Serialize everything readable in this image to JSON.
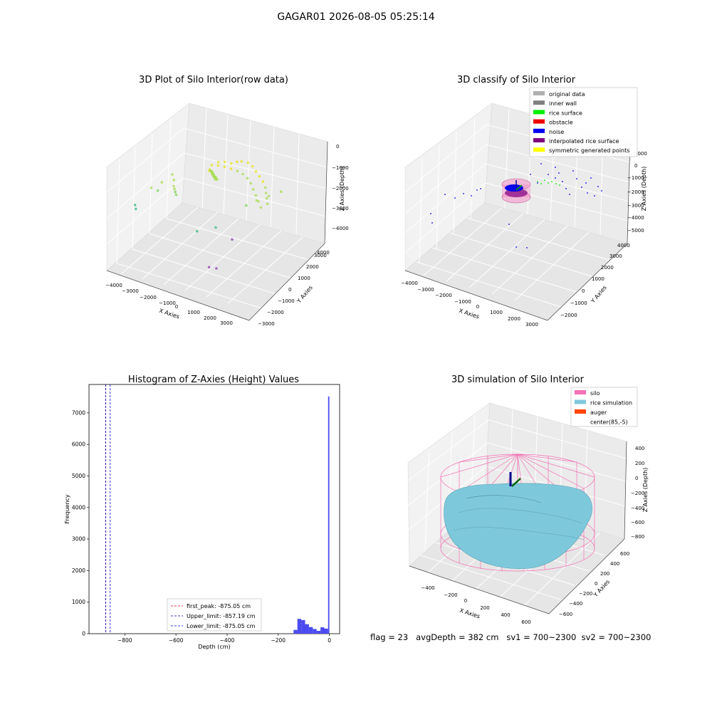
{
  "figure": {
    "title": "GAGAR01 2026-08-05 05:25:14",
    "footer": "flag = 23   avgDepth = 382 cm   sv1 = 700~2300  sv2 = 700~2300"
  },
  "colors": {
    "pane": "#f2f2f2",
    "grid": "#e0e0e0",
    "hist_bar": "#4b4bf0",
    "silo": "#f472b6",
    "rice": "#7ec8dc",
    "auger": "#ff4500"
  },
  "chart_data": [
    {
      "type": "scatter",
      "title": "3D Plot of Silo Interior(row data)",
      "xlabel": "X Axies",
      "ylabel": "Y Axies",
      "zlabel": "Z Axies (Depth)",
      "x_ticks": [
        "−4000",
        "−3000",
        "−2000",
        "−1000",
        "0",
        "1000",
        "2000",
        "3000"
      ],
      "y_ticks": [
        "−3000",
        "−2000",
        "−1000",
        "0",
        "1000",
        "2000",
        "3000",
        "4000"
      ],
      "z_ticks": [
        "0",
        "−1000",
        "−2000",
        "−3000",
        "−4000"
      ],
      "xlim": [
        -4200,
        3600
      ],
      "ylim": [
        -3200,
        4500
      ],
      "zlim": [
        -4300,
        200
      ],
      "series": [
        {
          "color_scale": "depth",
          "points": [
            [
              -1000,
              2000,
              -950
            ],
            [
              -700,
              2100,
              -900
            ],
            [
              -400,
              2200,
              -920
            ],
            [
              -200,
              2400,
              -880
            ],
            [
              0,
              2500,
              -850
            ],
            [
              300,
              2600,
              -870
            ],
            [
              600,
              2500,
              -900
            ],
            [
              900,
              2300,
              -950
            ],
            [
              1200,
              2100,
              -1000
            ],
            [
              1500,
              1900,
              -1050
            ],
            [
              1800,
              1600,
              -1100
            ],
            [
              2000,
              1300,
              -1150
            ],
            [
              2200,
              1000,
              -1200
            ],
            [
              2400,
              700,
              -1250
            ],
            [
              -1200,
              1700,
              -1000
            ],
            [
              -900,
              1800,
              -980
            ],
            [
              -600,
              1900,
              -1000
            ],
            [
              -300,
              2000,
              -1050
            ],
            [
              0,
              2100,
              -1100
            ],
            [
              300,
              2100,
              -1150
            ],
            [
              600,
              2000,
              -1200
            ],
            [
              900,
              1800,
              -1250
            ],
            [
              1200,
              1500,
              -1300
            ],
            [
              1500,
              1200,
              -1350
            ],
            [
              1800,
              900,
              -1400
            ],
            [
              2100,
              600,
              -1450
            ],
            [
              -1100,
              1300,
              -1050
            ],
            [
              -900,
              1200,
              -1100
            ],
            [
              -800,
              1150,
              -1150
            ],
            [
              -700,
              1100,
              -1200
            ],
            [
              -950,
              1300,
              -1080
            ],
            [
              -850,
              1250,
              -1120
            ],
            [
              -750,
              1200,
              -1180
            ],
            [
              -650,
              1150,
              -1240
            ],
            [
              -1000,
              1350,
              -1060
            ],
            [
              -780,
              1180,
              -1160
            ],
            [
              -1150,
              1400,
              -1050
            ],
            [
              -1050,
              1350,
              -1090
            ],
            [
              -900,
              1280,
              -1130
            ],
            [
              -700,
              1200,
              -1170
            ],
            [
              -600,
              1150,
              -1210
            ],
            [
              -800,
              1220,
              -1150
            ],
            [
              -950,
              1320,
              -1100
            ],
            [
              -1100,
              1380,
              -1070
            ],
            [
              -2200,
              -200,
              -1500
            ],
            [
              -2100,
              -300,
              -1550
            ],
            [
              -2000,
              -400,
              -1600
            ],
            [
              -2300,
              -100,
              -1450
            ],
            [
              -2500,
              300,
              -1400
            ],
            [
              -2700,
              500,
              -1300
            ],
            [
              -3800,
              -1200,
              -2200
            ],
            [
              -3700,
              -1300,
              -2300
            ],
            [
              -3200,
              -700,
              -1500
            ],
            [
              -3000,
              -400,
              -1700
            ],
            [
              -2900,
              -200,
              -1400
            ],
            [
              -400,
              -1200,
              -2400
            ],
            [
              300,
              -600,
              -2300
            ],
            [
              1200,
              800,
              -1700
            ],
            [
              1600,
              1100,
              -1500
            ],
            [
              2100,
              1400,
              -1300
            ],
            [
              2600,
              1700,
              -1100
            ]
          ]
        },
        {
          "color": "#8e44ad",
          "points": [
            [
              100,
              -800,
              -4000
            ],
            [
              450,
              -700,
              -4000
            ],
            [
              1000,
              -200,
              -2800
            ]
          ]
        }
      ]
    },
    {
      "type": "scatter",
      "title": "3D classify of Silo Interior",
      "xlabel": "X Axies",
      "ylabel": "Y Axies",
      "zlabel": "Z Axies (Depth)",
      "x_ticks": [
        "−4000",
        "−3000",
        "−2000",
        "−1000",
        "0",
        "1000",
        "2000",
        "3000"
      ],
      "y_ticks": [
        "−2000",
        "−1000",
        "0",
        "1000",
        "2000",
        "3000",
        "4000"
      ],
      "z_ticks": [
        "1000",
        "0",
        "−1000",
        "−2000",
        "−3000",
        "−4000",
        "−5000"
      ],
      "xlim": [
        -4200,
        3600
      ],
      "ylim": [
        -2300,
        4500
      ],
      "zlim": [
        -5400,
        1200
      ],
      "legend": [
        {
          "label": "original data",
          "color": "#b0b0b0"
        },
        {
          "label": "inner wall",
          "color": "#808080"
        },
        {
          "label": "rice surface",
          "color": "#00ee00"
        },
        {
          "label": "obstacle",
          "color": "#ee0000"
        },
        {
          "label": "noise",
          "color": "#0000ee"
        },
        {
          "label": "interpolated rice surface",
          "color": "#800080"
        },
        {
          "label": "symmetric generated points",
          "color": "#ffff00"
        }
      ],
      "legend_position": "top-right"
    },
    {
      "type": "bar",
      "title": "Histogram of Z-Axies (Height) Values",
      "xlabel": "Depth (cm)",
      "ylabel": "Frequency",
      "xlim": [
        -940,
        40
      ],
      "ylim": [
        0,
        7900
      ],
      "x_ticks": [
        -800,
        -600,
        -400,
        -200,
        0
      ],
      "x_tick_labels": [
        "−800",
        "−600",
        "−400",
        "−200",
        "0"
      ],
      "y_ticks": [
        0,
        1000,
        2000,
        3000,
        4000,
        5000,
        6000,
        7000
      ],
      "bins": [
        {
          "x0": -140,
          "x1": -125,
          "count": 120
        },
        {
          "x0": -125,
          "x1": -110,
          "count": 470
        },
        {
          "x0": -110,
          "x1": -95,
          "count": 430
        },
        {
          "x0": -95,
          "x1": -80,
          "count": 300
        },
        {
          "x0": -80,
          "x1": -65,
          "count": 210
        },
        {
          "x0": -65,
          "x1": -50,
          "count": 150
        },
        {
          "x0": -50,
          "x1": -35,
          "count": 90
        },
        {
          "x0": -35,
          "x1": -20,
          "count": 200
        },
        {
          "x0": -20,
          "x1": -5,
          "count": 160
        },
        {
          "x0": -5,
          "x1": 0,
          "count": 7520
        }
      ],
      "vlines": [
        {
          "x": -875.05,
          "color": "#cc0000",
          "label": "first_peak: -875.05 cm"
        },
        {
          "x": -857.19,
          "color": "#0000cc",
          "label": "Upper_limit: -857.19 cm"
        },
        {
          "x": -875.05,
          "color": "#0000cc",
          "label": "Lower_limit: -875.05 cm"
        }
      ],
      "legend_position": "lower-center"
    },
    {
      "type": "surface",
      "title": "3D simulation of Silo Interior",
      "xlabel": "X Axies",
      "ylabel": "Y Axies",
      "zlabel": "Z Axies (Depth)",
      "x_ticks": [
        "−400",
        "−200",
        "0",
        "200",
        "400",
        "600"
      ],
      "y_ticks": [
        "−600",
        "−400",
        "−200",
        "0",
        "200",
        "400",
        "600"
      ],
      "z_ticks": [
        "400",
        "200",
        "0",
        "−200",
        "−400",
        "−600",
        "−800"
      ],
      "legend": [
        {
          "label": "silo",
          "color": "#f472b6"
        },
        {
          "label": "rice simulation",
          "color": "#7ec8dc"
        },
        {
          "label": "auger",
          "color": "#ff4500"
        },
        {
          "label": "center(85,-5)",
          "color": ""
        }
      ],
      "legend_position": "top-right"
    }
  ]
}
